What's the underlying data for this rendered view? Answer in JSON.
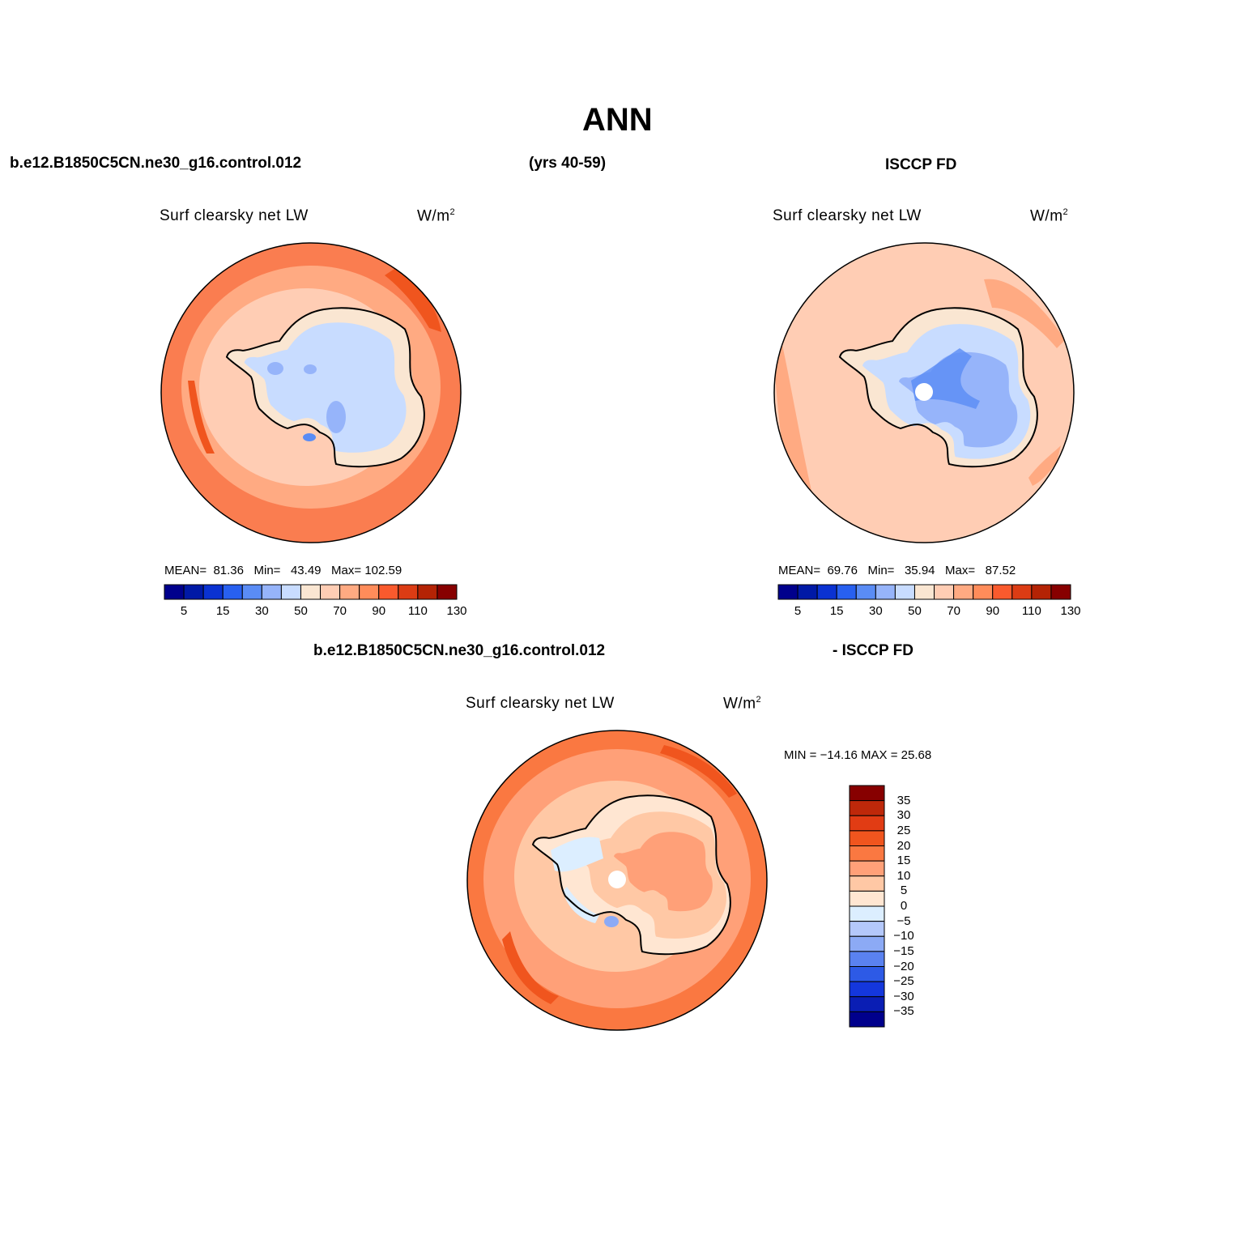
{
  "figure": {
    "title": "ANN",
    "case_name": "b.e12.B1850C5CN.ne30_g16.control.012",
    "years": "(yrs 40-59)",
    "obs_name": "ISCCP FD",
    "diff_case_name": "b.e12.B1850C5CN.ne30_g16.control.012",
    "diff_obs_name": "- ISCCP FD"
  },
  "panels": {
    "model": {
      "variable": "Surf clearsky net LW",
      "units": "W/m",
      "units_sup": "2",
      "mean_label": "MEAN=",
      "mean": "81.36",
      "min_label": "Min=",
      "min": "43.49",
      "max_label": "Max=",
      "max": "102.59"
    },
    "obs": {
      "variable": "Surf clearsky net LW",
      "units": "W/m",
      "units_sup": "2",
      "mean_label": "MEAN=",
      "mean": "69.76",
      "min_label": "Min=",
      "min": "35.94",
      "max_label": "Max=",
      "max": "87.52"
    },
    "diff": {
      "variable": "Surf clearsky net LW",
      "units": "W/m",
      "units_sup": "2",
      "minmax_text": "MIN = −14.16  MAX =   25.68"
    }
  },
  "colorbars": {
    "abs": {
      "colors": [
        "#00008c",
        "#0019a6",
        "#0a32d2",
        "#2860f0",
        "#5a8cf5",
        "#96b4fa",
        "#c8dcff",
        "#fae6d2",
        "#ffcdb4",
        "#ffaa82",
        "#ff8c5a",
        "#fa5a2d",
        "#dc3c14",
        "#b42305",
        "#870000"
      ],
      "tick_labels": [
        "5",
        "15",
        "30",
        "50",
        "70",
        "90",
        "110",
        "130"
      ]
    },
    "diff": {
      "colors_top_to_bottom": [
        "#870000",
        "#be280a",
        "#e13c14",
        "#f0551e",
        "#fa7841",
        "#ffa078",
        "#ffc8a5",
        "#ffe6d2",
        "#dceeff",
        "#b4c8fa",
        "#8caaf5",
        "#5a82f0",
        "#2d5ae6",
        "#1437dc",
        "#0a1eb4",
        "#00008c"
      ],
      "tick_labels": [
        "35",
        "30",
        "25",
        "20",
        "15",
        "10",
        "5",
        "0",
        "−5",
        "−10",
        "−15",
        "−20",
        "−25",
        "−30",
        "−35"
      ]
    }
  },
  "palette": {
    "ocean_warm": "#fa7d50",
    "ocean_mid": "#ffaa82",
    "ocean_light": "#ffcdb4",
    "coast_pale": "#fae6d2",
    "ice_blue": "#c8dcff",
    "ice_mid": "#96b4fa",
    "ice_dark": "#5a8cf5",
    "hot": "#f0551e"
  }
}
